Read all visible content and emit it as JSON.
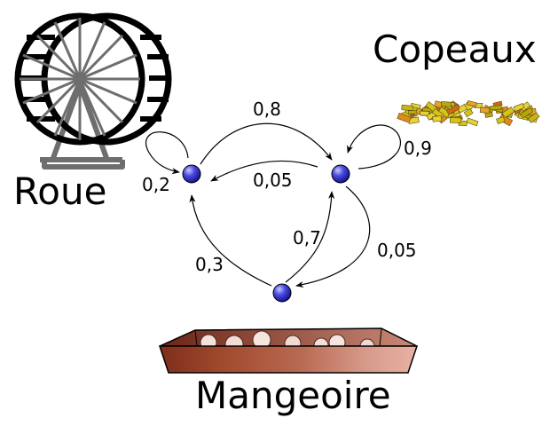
{
  "diagram": {
    "states": {
      "roue": {
        "label": "Roue",
        "icon": "hamster-wheel-icon"
      },
      "copeaux": {
        "label": "Copeaux",
        "icon": "wood-shavings-icon"
      },
      "mangeoire": {
        "label": "Mangeoire",
        "icon": "food-trough-icon"
      }
    },
    "transitions": {
      "roue_roue": "0,2",
      "roue_copeaux": "0,8",
      "copeaux_roue": "0,05",
      "copeaux_copeaux": "0,9",
      "copeaux_mangeoire": "0,05",
      "mangeoire_roue": "0,3",
      "mangeoire_copeaux": "0,7"
    },
    "colors": {
      "node": "#3030d0",
      "wheel": "#000000",
      "stand": "#6e6e6e",
      "trough_dark": "#8a3a22",
      "trough_light": "#e3a89a"
    }
  }
}
